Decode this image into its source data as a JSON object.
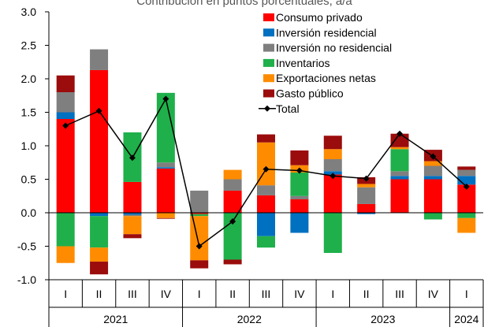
{
  "chart_data": {
    "type": "stacked_bar_line",
    "subtitle": "Contribución en puntos porcentuales, a/a",
    "year_groups": [
      {
        "label": "2021",
        "quarters": [
          "I",
          "II",
          "III",
          "IV"
        ]
      },
      {
        "label": "2022",
        "quarters": [
          "I",
          "II",
          "III",
          "IV"
        ]
      },
      {
        "label": "2023",
        "quarters": [
          "I",
          "II",
          "III",
          "IV"
        ]
      },
      {
        "label": "2024",
        "quarters": [
          "I"
        ]
      }
    ],
    "series": [
      {
        "name": "Consumo privado",
        "color": "#ff0000",
        "values": [
          1.4,
          2.13,
          0.46,
          0.66,
          -0.02,
          0.33,
          0.26,
          0.2,
          0.57,
          0.13,
          0.5,
          0.5,
          0.42
        ]
      },
      {
        "name": "Inversión residencial",
        "color": "#0070c0",
        "values": [
          0.1,
          -0.05,
          -0.03,
          0.02,
          0,
          0,
          -0.35,
          -0.3,
          0.05,
          -0.02,
          0.05,
          0.05,
          0.13
        ]
      },
      {
        "name": "Inversión no residencial",
        "color": "#7f7f7f",
        "values": [
          0.3,
          0.31,
          -0.02,
          0.07,
          0.33,
          0.17,
          0.15,
          0.05,
          0.18,
          0.25,
          0.07,
          0.15,
          0.09
        ]
      },
      {
        "name": "Inventarios",
        "color": "#1fb04b",
        "values": [
          -0.5,
          -0.47,
          0.74,
          1.04,
          -0.03,
          -0.7,
          -0.17,
          0.35,
          -0.6,
          0,
          0.33,
          -0.1,
          -0.08
        ]
      },
      {
        "name": "Exportaciones netas",
        "color": "#ff8c00",
        "values": [
          -0.25,
          -0.21,
          -0.27,
          -0.08,
          -0.66,
          0.14,
          0.64,
          0.11,
          0.15,
          0.05,
          0.03,
          0.07,
          -0.22
        ]
      },
      {
        "name": "Gasto público",
        "color": "#9b0c0c",
        "values": [
          0.25,
          -0.19,
          -0.06,
          -0.01,
          -0.12,
          -0.07,
          0.12,
          0.22,
          0.2,
          0.1,
          0.2,
          0.17,
          0.05
        ]
      }
    ],
    "line_series": {
      "name": "Total",
      "color": "#000000",
      "values": [
        1.3,
        1.52,
        0.82,
        1.7,
        -0.5,
        -0.13,
        0.65,
        0.63,
        0.55,
        0.51,
        1.18,
        0.84,
        0.39
      ]
    },
    "ylim": [
      -1,
      3
    ],
    "yticks": [
      {
        "value": -1,
        "label": "-1.0"
      },
      -0.5,
      {
        "value": 0,
        "label": "0.0"
      },
      0.5,
      {
        "value": 1,
        "label": "1.0"
      },
      1.5,
      {
        "value": 2,
        "label": "2.0"
      },
      2.5,
      {
        "value": 3,
        "label": "3.0"
      }
    ],
    "legend": "upper right"
  }
}
